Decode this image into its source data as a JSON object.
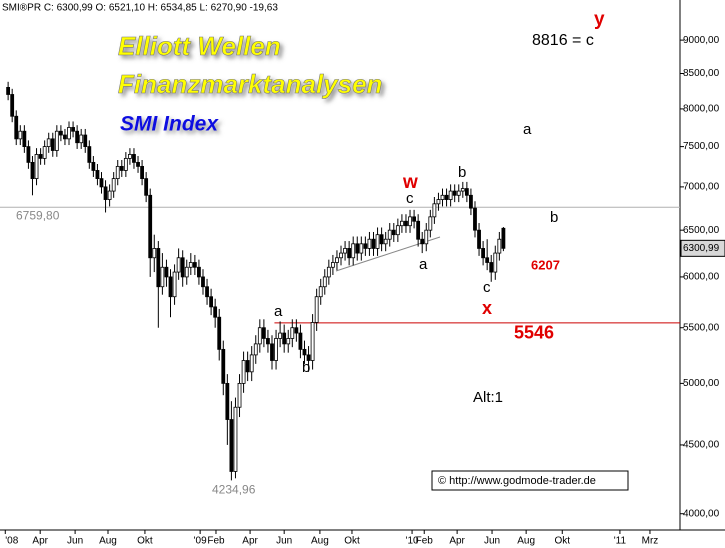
{
  "chart_data": {
    "type": "candlestick",
    "header": "SMI®PR C: 6300,99 O: 6521,10 H: 6534,85 L: 6270,90 -19,63",
    "title": "Elliott Wellen",
    "subtitle": "Finanzmarktanalysen",
    "index_name": "SMI Index",
    "log_scale": true,
    "ylim": [
      3890,
      9640
    ],
    "yticks": [
      {
        "value": 4000,
        "label": "4000,00"
      },
      {
        "value": 4500,
        "label": "4500,00"
      },
      {
        "value": 5000,
        "label": "5000,00"
      },
      {
        "value": 5500,
        "label": "5500,00"
      },
      {
        "value": 6000,
        "label": "6000,00"
      },
      {
        "value": 6500,
        "label": "6500,00"
      },
      {
        "value": 7000,
        "label": "7000,00"
      },
      {
        "value": 7500,
        "label": "7500,00"
      },
      {
        "value": 8000,
        "label": "8000,00"
      },
      {
        "value": 8500,
        "label": "8500,00"
      },
      {
        "value": 9000,
        "label": "9000,00"
      }
    ],
    "xlim": [
      -2,
      165.5
    ],
    "xticks": [
      {
        "value": -0.7,
        "label": "'08"
      },
      {
        "value": 7.9,
        "label": "Apr"
      },
      {
        "value": 16.5,
        "label": "Jun"
      },
      {
        "value": 24.6,
        "label": "Aug"
      },
      {
        "value": 33.7,
        "label": "Okt"
      },
      {
        "value": 47.3,
        "label": "'09"
      },
      {
        "value": 51.2,
        "label": "Feb"
      },
      {
        "value": 59.6,
        "label": "Apr"
      },
      {
        "value": 68,
        "label": "Jun"
      },
      {
        "value": 76.8,
        "label": "Aug"
      },
      {
        "value": 84.7,
        "label": "Okt"
      },
      {
        "value": 99.5,
        "label": "'10"
      },
      {
        "value": 102.5,
        "label": "Feb"
      },
      {
        "value": 110.6,
        "label": "Apr"
      },
      {
        "value": 119.2,
        "label": "Jun"
      },
      {
        "value": 127.6,
        "label": "Aug"
      },
      {
        "value": 136.5,
        "label": "Okt"
      },
      {
        "value": 150.7,
        "label": "'11"
      },
      {
        "value": 158.1,
        "label": "Mrz"
      }
    ],
    "levels": [
      {
        "value": 6759.8,
        "label": "6759,80",
        "color": "#b0b0b0"
      },
      {
        "value": 5546,
        "label": "5546",
        "color": "#cc0000"
      }
    ],
    "low_label": {
      "value": 4234.96,
      "label": "4234,96"
    },
    "last_price": {
      "value": 6300.99,
      "label": "6300,99"
    },
    "annotations": [
      "y",
      "8816 = c",
      "a",
      "b",
      "6207",
      "x",
      "c",
      "w",
      "c",
      "b",
      "a",
      "a",
      "b",
      "Alt:1"
    ],
    "source": "© http://www.godmode-trader.de",
    "candles": [
      [
        8300,
        8380,
        8120,
        8200
      ],
      [
        8200,
        8280,
        7820,
        7900
      ],
      [
        7900,
        7980,
        7520,
        7600
      ],
      [
        7600,
        7780,
        7520,
        7700
      ],
      [
        7700,
        7780,
        7420,
        7500
      ],
      [
        7500,
        7580,
        7220,
        7300
      ],
      [
        7300,
        7380,
        6900,
        7100
      ],
      [
        7100,
        7480,
        7020,
        7400
      ],
      [
        7400,
        7480,
        7270,
        7350
      ],
      [
        7350,
        7580,
        7270,
        7500
      ],
      [
        7500,
        7680,
        7420,
        7600
      ],
      [
        7600,
        7680,
        7370,
        7450
      ],
      [
        7450,
        7780,
        7370,
        7700
      ],
      [
        7700,
        7780,
        7570,
        7650
      ],
      [
        7650,
        7730,
        7520,
        7600
      ],
      [
        7600,
        7830,
        7520,
        7750
      ],
      [
        7750,
        7830,
        7620,
        7700
      ],
      [
        7700,
        7780,
        7470,
        7550
      ],
      [
        7550,
        7730,
        7470,
        7650
      ],
      [
        7650,
        7730,
        7420,
        7500
      ],
      [
        7500,
        7580,
        7220,
        7300
      ],
      [
        7300,
        7380,
        7120,
        7200
      ],
      [
        7200,
        7280,
        7020,
        7100
      ],
      [
        7100,
        7180,
        6920,
        7000
      ],
      [
        7000,
        7080,
        6700,
        6850
      ],
      [
        6850,
        7030,
        6770,
        6950
      ],
      [
        6950,
        7180,
        6870,
        7100
      ],
      [
        7100,
        7330,
        7020,
        7250
      ],
      [
        7250,
        7330,
        7120,
        7200
      ],
      [
        7200,
        7430,
        7120,
        7350
      ],
      [
        7350,
        7480,
        7270,
        7400
      ],
      [
        7400,
        7480,
        7220,
        7300
      ],
      [
        7300,
        7380,
        7170,
        7250
      ],
      [
        7250,
        7330,
        7020,
        7100
      ],
      [
        7100,
        7180,
        6820,
        6900
      ],
      [
        6900,
        6980,
        6000,
        6200
      ],
      [
        6200,
        6450,
        6050,
        6300
      ],
      [
        6300,
        6380,
        5500,
        5900
      ],
      [
        5900,
        6250,
        5820,
        6100
      ],
      [
        6100,
        6180,
        5900,
        6000
      ],
      [
        6000,
        6080,
        5600,
        5800
      ],
      [
        5800,
        6130,
        5720,
        6050
      ],
      [
        6050,
        6300,
        5970,
        6200
      ],
      [
        6200,
        6280,
        5900,
        6000
      ],
      [
        6000,
        6180,
        5920,
        6100
      ],
      [
        6100,
        6250,
        6020,
        6150
      ],
      [
        6150,
        6230,
        6020,
        6100
      ],
      [
        6100,
        6180,
        5920,
        6000
      ],
      [
        6000,
        6080,
        5820,
        5900
      ],
      [
        5900,
        5980,
        5720,
        5800
      ],
      [
        5800,
        5880,
        5620,
        5700
      ],
      [
        5700,
        5780,
        5500,
        5600
      ],
      [
        5600,
        5680,
        5200,
        5300
      ],
      [
        5300,
        5380,
        4900,
        5000
      ],
      [
        5000,
        5080,
        4500,
        4700
      ],
      [
        4700,
        4850,
        4234.96,
        4300
      ],
      [
        4300,
        4880,
        4250,
        4800
      ],
      [
        4800,
        5080,
        4720,
        5000
      ],
      [
        5000,
        5280,
        4920,
        5200
      ],
      [
        5200,
        5280,
        5020,
        5100
      ],
      [
        5100,
        5330,
        5020,
        5250
      ],
      [
        5250,
        5430,
        5170,
        5350
      ],
      [
        5350,
        5580,
        5270,
        5500
      ],
      [
        5500,
        5580,
        5320,
        5400
      ],
      [
        5400,
        5480,
        5270,
        5350
      ],
      [
        5350,
        5430,
        5120,
        5200
      ],
      [
        5200,
        5480,
        5120,
        5400
      ],
      [
        5400,
        5560,
        5320,
        5450
      ],
      [
        5450,
        5530,
        5270,
        5350
      ],
      [
        5350,
        5480,
        5270,
        5400
      ],
      [
        5400,
        5580,
        5320,
        5500
      ],
      [
        5500,
        5580,
        5370,
        5450
      ],
      [
        5450,
        5530,
        5220,
        5300
      ],
      [
        5300,
        5380,
        5170,
        5250
      ],
      [
        5250,
        5330,
        5100,
        5200
      ],
      [
        5200,
        5630,
        5120,
        5550
      ],
      [
        5550,
        5880,
        5470,
        5800
      ],
      [
        5800,
        5980,
        5720,
        5900
      ],
      [
        5900,
        6080,
        5820,
        6000
      ],
      [
        6000,
        6180,
        5920,
        6100
      ],
      [
        6100,
        6230,
        6020,
        6150
      ],
      [
        6150,
        6280,
        6070,
        6200
      ],
      [
        6200,
        6330,
        6120,
        6250
      ],
      [
        6250,
        6380,
        6170,
        6300
      ],
      [
        6300,
        6380,
        6120,
        6200
      ],
      [
        6200,
        6430,
        6120,
        6350
      ],
      [
        6350,
        6430,
        6170,
        6250
      ],
      [
        6250,
        6430,
        6170,
        6350
      ],
      [
        6350,
        6430,
        6220,
        6300
      ],
      [
        6300,
        6480,
        6220,
        6400
      ],
      [
        6400,
        6480,
        6220,
        6300
      ],
      [
        6300,
        6530,
        6220,
        6450
      ],
      [
        6450,
        6530,
        6270,
        6350
      ],
      [
        6350,
        6480,
        6270,
        6400
      ],
      [
        6400,
        6580,
        6320,
        6500
      ],
      [
        6500,
        6580,
        6370,
        6450
      ],
      [
        6450,
        6630,
        6370,
        6550
      ],
      [
        6550,
        6680,
        6470,
        6600
      ],
      [
        6600,
        6680,
        6470,
        6550
      ],
      [
        6550,
        6730,
        6470,
        6650
      ],
      [
        6650,
        6730,
        6520,
        6600
      ],
      [
        6600,
        6680,
        6320,
        6400
      ],
      [
        6400,
        6480,
        6250,
        6350
      ],
      [
        6350,
        6580,
        6270,
        6500
      ],
      [
        6500,
        6730,
        6420,
        6650
      ],
      [
        6650,
        6880,
        6570,
        6800
      ],
      [
        6800,
        6930,
        6720,
        6850
      ],
      [
        6850,
        6980,
        6770,
        6900
      ],
      [
        6900,
        6980,
        6770,
        6850
      ],
      [
        6850,
        7030,
        6770,
        6950
      ],
      [
        6950,
        7030,
        6820,
        6900
      ],
      [
        6900,
        7030,
        6820,
        6950
      ],
      [
        6950,
        7060,
        6870,
        6980
      ],
      [
        6980,
        7060,
        6820,
        6900
      ],
      [
        6900,
        6980,
        6670,
        6750
      ],
      [
        6750,
        6830,
        6420,
        6500
      ],
      [
        6500,
        6580,
        6220,
        6300
      ],
      [
        6300,
        6380,
        6120,
        6200
      ],
      [
        6200,
        6400,
        6070,
        6150
      ],
      [
        6150,
        6230,
        5950,
        6050
      ],
      [
        6050,
        6330,
        5970,
        6250
      ],
      [
        6250,
        6480,
        6170,
        6400
      ],
      [
        6521.1,
        6534.85,
        6270.9,
        6300.99
      ]
    ]
  }
}
